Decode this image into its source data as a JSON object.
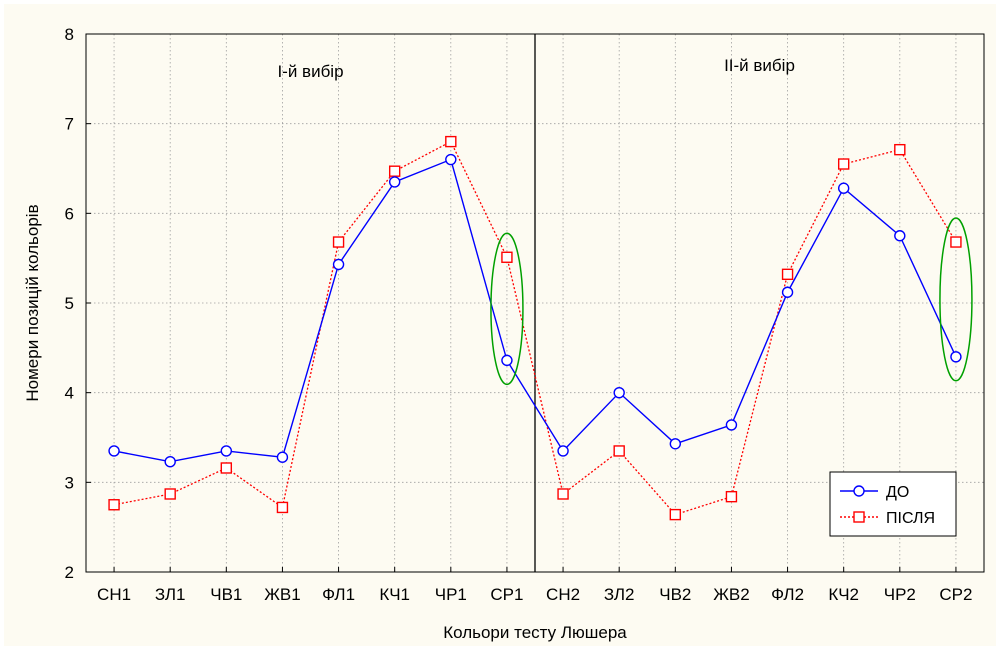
{
  "chart_data": {
    "type": "line",
    "xlabel": "Кольори тесту Люшера",
    "ylabel": "Номери позицій кольорів",
    "ylim": [
      2,
      8
    ],
    "yticks": [
      2,
      3,
      4,
      5,
      6,
      7,
      8
    ],
    "grid": true,
    "categories": [
      "СН1",
      "ЗЛ1",
      "ЧВ1",
      "ЖВ1",
      "ФЛ1",
      "КЧ1",
      "ЧР1",
      "СР1",
      "СН2",
      "ЗЛ2",
      "ЧВ2",
      "ЖВ2",
      "ФЛ2",
      "КЧ2",
      "ЧР2",
      "СР2"
    ],
    "series": [
      {
        "name": "ДО",
        "color": "#0000ff",
        "marker": "circle",
        "line": "solid",
        "values": [
          3.35,
          3.23,
          3.35,
          3.28,
          5.43,
          6.35,
          6.6,
          4.36,
          3.35,
          4.0,
          3.43,
          3.64,
          5.12,
          6.28,
          5.75,
          4.4
        ]
      },
      {
        "name": "ПІСЛЯ",
        "color": "#ff0000",
        "marker": "square",
        "line": "dotted",
        "values": [
          2.75,
          2.87,
          3.16,
          2.72,
          5.68,
          6.47,
          6.8,
          5.51,
          2.87,
          3.35,
          2.64,
          2.84,
          5.32,
          6.55,
          6.71,
          5.68
        ]
      }
    ],
    "annotations": {
      "left_section": "І-й вибір",
      "right_section": "ІІ-й вибір"
    },
    "divider_after_category": "СР1",
    "highlight_ellipses": [
      "СР1",
      "СР2"
    ],
    "highlight_color": "#00a000",
    "legend_position": "bottom-right"
  }
}
